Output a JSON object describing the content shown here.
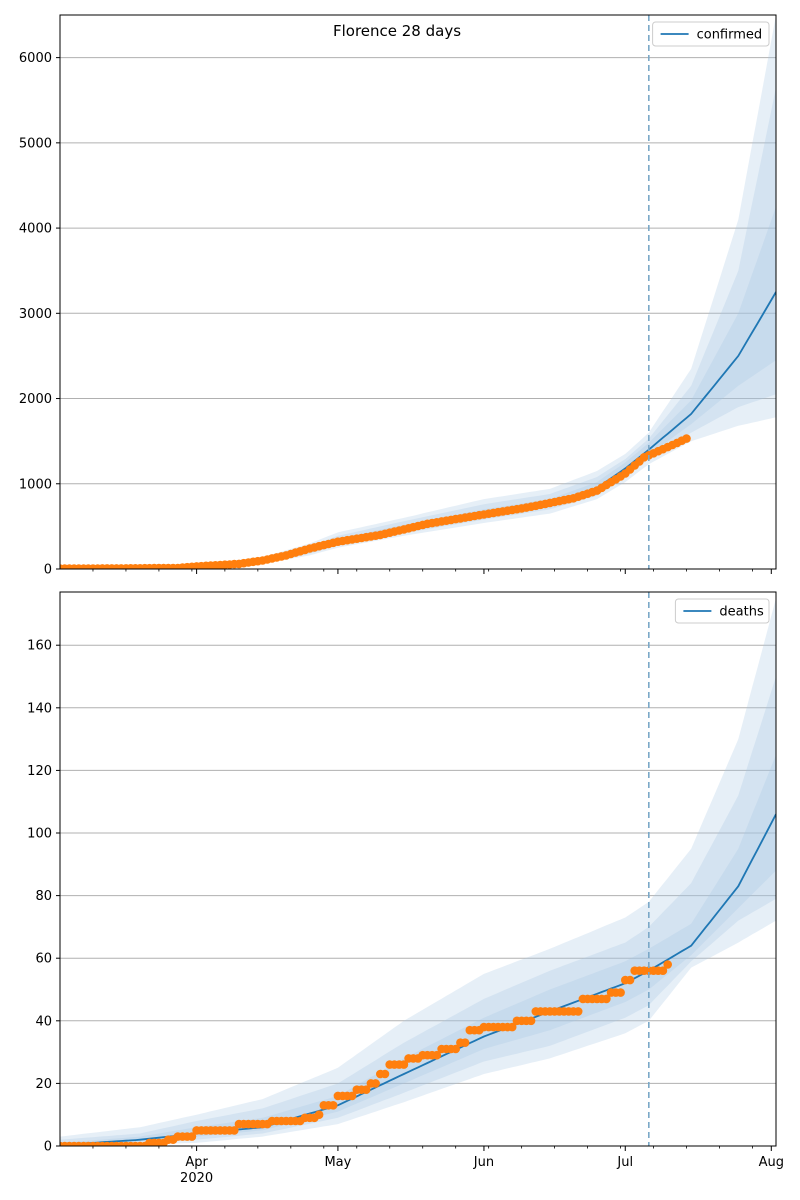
{
  "figure": {
    "title": "Florence 28 days"
  },
  "colors": {
    "model": "#1f77b4",
    "observed": "#ff7f0e",
    "band": "#a6c4e2",
    "vline": "#7aa8c8",
    "grid": "#b0b0b0"
  },
  "chart_data": [
    {
      "type": "line",
      "legend": {
        "label": "confirmed",
        "placement": "top-right"
      },
      "xlim": [
        "2020-03-03",
        "2020-08-02"
      ],
      "ylim": [
        0,
        6500
      ],
      "yticks": [
        0,
        1000,
        2000,
        3000,
        4000,
        5000,
        6000
      ],
      "grid": "y",
      "forecast_start": "2020-07-06",
      "x_anchor": [
        "2020-03-03",
        "2020-03-20",
        "2020-04-01",
        "2020-04-15",
        "2020-04-25",
        "2020-05-01",
        "2020-05-15",
        "2020-06-01",
        "2020-06-15",
        "2020-06-25",
        "2020-07-01",
        "2020-07-06",
        "2020-07-15",
        "2020-07-25",
        "2020-08-02"
      ],
      "model": [
        5,
        10,
        30,
        90,
        220,
        320,
        470,
        640,
        760,
        950,
        1180,
        1400,
        1820,
        2500,
        3250
      ],
      "bands": [
        {
          "low": [
            2,
            5,
            20,
            60,
            160,
            250,
            390,
            540,
            650,
            820,
            1020,
            1230,
            1500,
            1680,
            1780
          ],
          "high": [
            15,
            25,
            50,
            140,
            300,
            430,
            600,
            820,
            940,
            1150,
            1350,
            1600,
            2350,
            4100,
            6500
          ]
        },
        {
          "low": [
            3,
            7,
            24,
            70,
            180,
            275,
            420,
            580,
            700,
            860,
            1070,
            1290,
            1600,
            1900,
            2050
          ],
          "high": [
            10,
            20,
            42,
            120,
            270,
            390,
            560,
            760,
            880,
            1080,
            1290,
            1530,
            2150,
            3500,
            5650
          ]
        },
        {
          "low": [
            4,
            8,
            26,
            78,
            195,
            295,
            440,
            605,
            725,
            900,
            1120,
            1340,
            1700,
            2150,
            2450
          ],
          "high": [
            8,
            15,
            36,
            105,
            250,
            355,
            520,
            700,
            820,
            1020,
            1250,
            1480,
            1980,
            3000,
            4250
          ]
        }
      ],
      "observed": {
        "x_anchor": [
          "2020-03-03",
          "2020-03-20",
          "2020-03-28",
          "2020-04-01",
          "2020-04-10",
          "2020-04-15",
          "2020-04-20",
          "2020-04-25",
          "2020-05-01",
          "2020-05-10",
          "2020-05-20",
          "2020-06-01",
          "2020-06-10",
          "2020-06-20",
          "2020-06-25",
          "2020-07-01",
          "2020-07-05",
          "2020-07-10",
          "2020-07-14"
        ],
        "y_anchor": [
          5,
          8,
          12,
          30,
          60,
          100,
          160,
          240,
          320,
          400,
          530,
          640,
          720,
          830,
          920,
          1120,
          1310,
          1430,
          1530
        ]
      }
    },
    {
      "type": "line",
      "legend": {
        "label": "deaths",
        "placement": "top-right"
      },
      "xlim": [
        "2020-03-03",
        "2020-08-02"
      ],
      "ylim": [
        0,
        177
      ],
      "yticks": [
        0,
        20,
        40,
        60,
        80,
        100,
        120,
        140,
        160
      ],
      "grid": "y",
      "forecast_start": "2020-07-06",
      "x_anchor": [
        "2020-03-03",
        "2020-03-20",
        "2020-04-01",
        "2020-04-15",
        "2020-05-01",
        "2020-05-15",
        "2020-06-01",
        "2020-06-15",
        "2020-07-01",
        "2020-07-06",
        "2020-07-15",
        "2020-07-25",
        "2020-08-02"
      ],
      "model": [
        0.3,
        2,
        4,
        6,
        13,
        23,
        35,
        43,
        52,
        56,
        64,
        83,
        106
      ],
      "bands": [
        {
          "low": [
            0,
            0.5,
            1,
            3,
            7,
            14,
            23,
            28,
            36,
            40,
            57,
            65,
            72
          ],
          "high": [
            3,
            6,
            10,
            15,
            25,
            40,
            55,
            63,
            73,
            78,
            95,
            130,
            175
          ]
        },
        {
          "low": [
            0,
            1,
            2,
            4,
            9,
            17,
            27,
            32,
            41,
            45,
            59,
            72,
            79
          ],
          "high": [
            2,
            4,
            8,
            12,
            20,
            33,
            47,
            56,
            65,
            70,
            84,
            112,
            150
          ]
        },
        {
          "low": [
            0.1,
            1.5,
            3,
            5,
            11,
            20,
            31,
            37,
            46,
            50,
            61,
            76,
            88
          ],
          "high": [
            1,
            3,
            6,
            9,
            16,
            28,
            41,
            50,
            59,
            63,
            71,
            95,
            125
          ]
        }
      ],
      "observed": {
        "steps": [
          [
            "2020-03-03",
            0
          ],
          [
            "2020-03-22",
            1
          ],
          [
            "2020-03-26",
            2
          ],
          [
            "2020-03-28",
            3
          ],
          [
            "2020-04-01",
            5
          ],
          [
            "2020-04-10",
            7
          ],
          [
            "2020-04-17",
            8
          ],
          [
            "2020-04-24",
            9
          ],
          [
            "2020-04-27",
            10
          ],
          [
            "2020-04-28",
            13
          ],
          [
            "2020-05-01",
            16
          ],
          [
            "2020-05-05",
            18
          ],
          [
            "2020-05-08",
            20
          ],
          [
            "2020-05-10",
            23
          ],
          [
            "2020-05-12",
            26
          ],
          [
            "2020-05-16",
            28
          ],
          [
            "2020-05-19",
            29
          ],
          [
            "2020-05-23",
            31
          ],
          [
            "2020-05-27",
            33
          ],
          [
            "2020-05-29",
            37
          ],
          [
            "2020-06-01",
            38
          ],
          [
            "2020-06-08",
            40
          ],
          [
            "2020-06-12",
            43
          ],
          [
            "2020-06-22",
            47
          ],
          [
            "2020-06-28",
            49
          ],
          [
            "2020-07-01",
            53
          ],
          [
            "2020-07-03",
            56
          ],
          [
            "2020-07-10",
            58
          ]
        ],
        "end": "2020-07-10"
      }
    }
  ],
  "x_axis": {
    "ticks": [
      {
        "date": "2020-04-01",
        "label": "Apr",
        "sublabel": "2020"
      },
      {
        "date": "2020-05-01",
        "label": "May",
        "sublabel": ""
      },
      {
        "date": "2020-06-01",
        "label": "Jun",
        "sublabel": ""
      },
      {
        "date": "2020-07-01",
        "label": "Jul",
        "sublabel": ""
      },
      {
        "date": "2020-08-01",
        "label": "Aug",
        "sublabel": ""
      }
    ]
  }
}
